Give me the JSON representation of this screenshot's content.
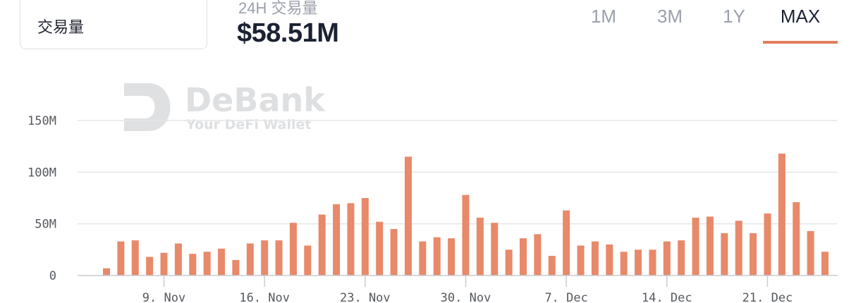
{
  "metric_selector": {
    "label": "交易量"
  },
  "summary": {
    "caption": "24H 交易量",
    "value": "$58.51M"
  },
  "range_tabs": [
    {
      "label": "1M",
      "active": false
    },
    {
      "label": "3M",
      "active": false
    },
    {
      "label": "1Y",
      "active": false
    },
    {
      "label": "MAX",
      "active": true
    }
  ],
  "watermark": {
    "brand": "DeBank",
    "tagline": "Your DeFi Wallet"
  },
  "colors": {
    "bar": "#e8896a",
    "accent": "#e07e5c",
    "grid": "#e3e5e8"
  },
  "chart_data": {
    "type": "bar",
    "title": "",
    "xlabel": "",
    "ylabel": "",
    "ylim": [
      0,
      150000000
    ],
    "y_ticks": [
      {
        "value": 0,
        "label": "0"
      },
      {
        "value": 50000000,
        "label": "50M"
      },
      {
        "value": 100000000,
        "label": "100M"
      },
      {
        "value": 150000000,
        "label": "150M"
      }
    ],
    "x_ticks": [
      {
        "date": "2020-11-09",
        "label": "9. Nov"
      },
      {
        "date": "2020-11-16",
        "label": "16. Nov"
      },
      {
        "date": "2020-11-23",
        "label": "23. Nov"
      },
      {
        "date": "2020-11-30",
        "label": "30. Nov"
      },
      {
        "date": "2020-12-07",
        "label": "7. Dec"
      },
      {
        "date": "2020-12-14",
        "label": "14. Dec"
      },
      {
        "date": "2020-12-21",
        "label": "21. Dec"
      }
    ],
    "grid": true,
    "legend": "none",
    "series": [
      {
        "dates": [
          "2020-11-05",
          "2020-11-06",
          "2020-11-07",
          "2020-11-08",
          "2020-11-09",
          "2020-11-10",
          "2020-11-11",
          "2020-11-12",
          "2020-11-13",
          "2020-11-14",
          "2020-11-15",
          "2020-11-16",
          "2020-11-17",
          "2020-11-18",
          "2020-11-19",
          "2020-11-20",
          "2020-11-21",
          "2020-11-22",
          "2020-11-23",
          "2020-11-24",
          "2020-11-25",
          "2020-11-26",
          "2020-11-27",
          "2020-11-28",
          "2020-11-29",
          "2020-11-30",
          "2020-12-01",
          "2020-12-02",
          "2020-12-03",
          "2020-12-04",
          "2020-12-05",
          "2020-12-06",
          "2020-12-07",
          "2020-12-08",
          "2020-12-09",
          "2020-12-10",
          "2020-12-11",
          "2020-12-12",
          "2020-12-13",
          "2020-12-14",
          "2020-12-15",
          "2020-12-16",
          "2020-12-17",
          "2020-12-18",
          "2020-12-19",
          "2020-12-20",
          "2020-12-21",
          "2020-12-22",
          "2020-12-23",
          "2020-12-24",
          "2020-12-25"
        ],
        "values": [
          7000000,
          33000000,
          34000000,
          18000000,
          22000000,
          31000000,
          21000000,
          23000000,
          26000000,
          15000000,
          31000000,
          34000000,
          34000000,
          51000000,
          29000000,
          59000000,
          69000000,
          70000000,
          75000000,
          52000000,
          45000000,
          115000000,
          33000000,
          37000000,
          36000000,
          78000000,
          56000000,
          51000000,
          25000000,
          36000000,
          40000000,
          19000000,
          63000000,
          29000000,
          33000000,
          30000000,
          23000000,
          25000000,
          25000000,
          33000000,
          34000000,
          56000000,
          57000000,
          41000000,
          53000000,
          41000000,
          60000000,
          118000000,
          71000000,
          43000000,
          23000000
        ]
      }
    ]
  }
}
